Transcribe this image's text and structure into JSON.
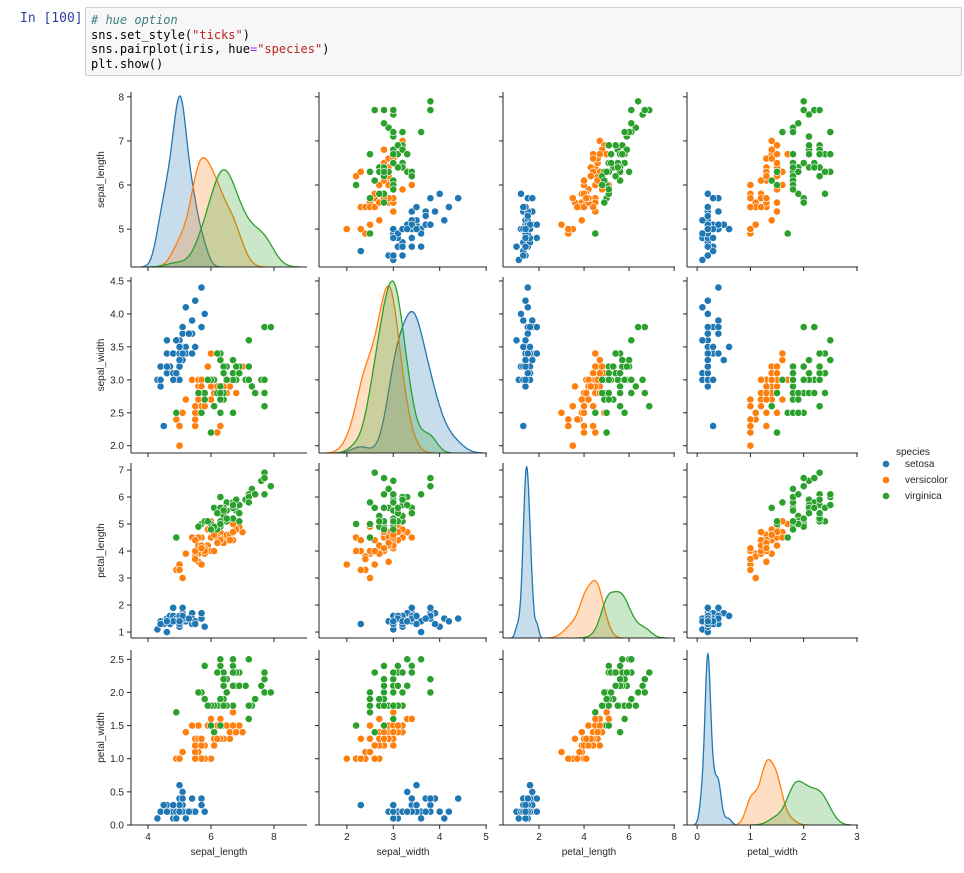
{
  "notebook": {
    "prompt": "In [100]:",
    "code_lines": [
      [
        {
          "t": "# hue option",
          "c": "cmt"
        }
      ],
      [
        {
          "t": "sns.set_style(",
          "c": ""
        },
        {
          "t": "\"ticks\"",
          "c": "str"
        },
        {
          "t": ")",
          "c": ""
        }
      ],
      [
        {
          "t": "sns.pairplot(iris, hue",
          "c": ""
        },
        {
          "t": "=",
          "c": "op"
        },
        {
          "t": "\"species\"",
          "c": "str"
        },
        {
          "t": ")",
          "c": ""
        }
      ],
      [
        {
          "t": "plt.show()",
          "c": ""
        }
      ]
    ]
  },
  "chart_data": {
    "type": "scatter",
    "subtype": "pairplot",
    "title": "",
    "variables": [
      "sepal_length",
      "sepal_width",
      "petal_length",
      "petal_width"
    ],
    "axis_ranges": {
      "sepal_length": [
        3.46,
        9.05
      ],
      "sepal_width": [
        1.4,
        5.02
      ],
      "petal_length": [
        0.4,
        8.04
      ],
      "petal_width": [
        -0.19,
        3.02
      ]
    },
    "row_ranges": {
      "sepal_length": [
        4.14,
        8.11
      ],
      "sepal_width": [
        1.89,
        4.56
      ],
      "petal_length": [
        0.78,
        7.26
      ],
      "petal_width": [
        0.0,
        2.64
      ]
    },
    "x_ticks": {
      "sepal_length": [
        "4",
        "6",
        "8"
      ],
      "sepal_width": [
        "2",
        "3",
        "4",
        "5"
      ],
      "petal_length": [
        "2",
        "4",
        "6",
        "8"
      ],
      "petal_width": [
        "0",
        "1",
        "2",
        "3"
      ]
    },
    "y_ticks": {
      "sepal_length": [
        "5",
        "6",
        "7",
        "8"
      ],
      "sepal_width": [
        "2.0",
        "2.5",
        "3.0",
        "3.5",
        "4.0",
        "4.5"
      ],
      "petal_length": [
        "1",
        "2",
        "3",
        "4",
        "5",
        "6",
        "7"
      ],
      "petal_width": [
        "0.0",
        "0.5",
        "1.0",
        "1.5",
        "2.0",
        "2.5"
      ]
    },
    "diagonal": "kde",
    "legend": {
      "title": "species",
      "position": "right",
      "entries": [
        {
          "label": "setosa",
          "color": "#1f77b4"
        },
        {
          "label": "versicolor",
          "color": "#ff7f0e"
        },
        {
          "label": "virginica",
          "color": "#2ca02c"
        }
      ]
    },
    "series": [
      {
        "name": "setosa",
        "color": "#1f77b4",
        "points": [
          [
            5.1,
            3.5,
            1.4,
            0.2
          ],
          [
            4.9,
            3.0,
            1.4,
            0.2
          ],
          [
            4.7,
            3.2,
            1.3,
            0.2
          ],
          [
            4.6,
            3.1,
            1.5,
            0.2
          ],
          [
            5.0,
            3.6,
            1.4,
            0.2
          ],
          [
            5.4,
            3.9,
            1.7,
            0.4
          ],
          [
            4.6,
            3.4,
            1.4,
            0.3
          ],
          [
            5.0,
            3.4,
            1.5,
            0.2
          ],
          [
            4.4,
            2.9,
            1.4,
            0.2
          ],
          [
            4.9,
            3.1,
            1.5,
            0.1
          ],
          [
            5.4,
            3.7,
            1.5,
            0.2
          ],
          [
            4.8,
            3.4,
            1.6,
            0.2
          ],
          [
            4.8,
            3.0,
            1.4,
            0.1
          ],
          [
            4.3,
            3.0,
            1.1,
            0.1
          ],
          [
            5.8,
            4.0,
            1.2,
            0.2
          ],
          [
            5.7,
            4.4,
            1.5,
            0.4
          ],
          [
            5.4,
            3.9,
            1.3,
            0.4
          ],
          [
            5.1,
            3.5,
            1.4,
            0.3
          ],
          [
            5.7,
            3.8,
            1.7,
            0.3
          ],
          [
            5.1,
            3.8,
            1.5,
            0.3
          ],
          [
            5.4,
            3.4,
            1.7,
            0.2
          ],
          [
            5.1,
            3.7,
            1.5,
            0.4
          ],
          [
            4.6,
            3.6,
            1.0,
            0.2
          ],
          [
            5.1,
            3.3,
            1.7,
            0.5
          ],
          [
            4.8,
            3.4,
            1.9,
            0.2
          ],
          [
            5.0,
            3.0,
            1.6,
            0.2
          ],
          [
            5.0,
            3.4,
            1.6,
            0.4
          ],
          [
            5.2,
            3.5,
            1.5,
            0.2
          ],
          [
            5.2,
            3.4,
            1.4,
            0.2
          ],
          [
            4.7,
            3.2,
            1.6,
            0.2
          ],
          [
            4.8,
            3.1,
            1.6,
            0.2
          ],
          [
            5.4,
            3.4,
            1.5,
            0.4
          ],
          [
            5.2,
            4.1,
            1.5,
            0.1
          ],
          [
            5.5,
            4.2,
            1.4,
            0.2
          ],
          [
            4.9,
            3.1,
            1.5,
            0.2
          ],
          [
            5.0,
            3.2,
            1.2,
            0.2
          ],
          [
            5.5,
            3.5,
            1.3,
            0.2
          ],
          [
            4.9,
            3.6,
            1.4,
            0.1
          ],
          [
            4.4,
            3.0,
            1.3,
            0.2
          ],
          [
            5.1,
            3.4,
            1.5,
            0.2
          ],
          [
            5.0,
            3.5,
            1.3,
            0.3
          ],
          [
            4.5,
            2.3,
            1.3,
            0.3
          ],
          [
            4.4,
            3.2,
            1.3,
            0.2
          ],
          [
            5.0,
            3.5,
            1.6,
            0.6
          ],
          [
            5.1,
            3.8,
            1.9,
            0.4
          ],
          [
            4.8,
            3.0,
            1.4,
            0.3
          ],
          [
            5.1,
            3.8,
            1.6,
            0.2
          ],
          [
            4.6,
            3.2,
            1.4,
            0.2
          ],
          [
            5.3,
            3.7,
            1.5,
            0.2
          ],
          [
            5.0,
            3.3,
            1.4,
            0.2
          ]
        ]
      },
      {
        "name": "versicolor",
        "color": "#ff7f0e",
        "points": [
          [
            7.0,
            3.2,
            4.7,
            1.4
          ],
          [
            6.4,
            3.2,
            4.5,
            1.5
          ],
          [
            6.9,
            3.1,
            4.9,
            1.5
          ],
          [
            5.5,
            2.3,
            4.0,
            1.3
          ],
          [
            6.5,
            2.8,
            4.6,
            1.5
          ],
          [
            5.7,
            2.8,
            4.5,
            1.3
          ],
          [
            6.3,
            3.3,
            4.7,
            1.6
          ],
          [
            4.9,
            2.4,
            3.3,
            1.0
          ],
          [
            6.6,
            2.9,
            4.6,
            1.3
          ],
          [
            5.2,
            2.7,
            3.9,
            1.4
          ],
          [
            5.0,
            2.0,
            3.5,
            1.0
          ],
          [
            5.9,
            3.0,
            4.2,
            1.5
          ],
          [
            6.0,
            2.2,
            4.0,
            1.0
          ],
          [
            6.1,
            2.9,
            4.7,
            1.4
          ],
          [
            5.6,
            2.9,
            3.6,
            1.3
          ],
          [
            6.7,
            3.1,
            4.4,
            1.4
          ],
          [
            5.6,
            3.0,
            4.5,
            1.5
          ],
          [
            5.8,
            2.7,
            4.1,
            1.0
          ],
          [
            6.2,
            2.2,
            4.5,
            1.5
          ],
          [
            5.6,
            2.5,
            3.9,
            1.1
          ],
          [
            5.9,
            3.2,
            4.8,
            1.8
          ],
          [
            6.1,
            2.8,
            4.0,
            1.3
          ],
          [
            6.3,
            2.5,
            4.9,
            1.5
          ],
          [
            6.1,
            2.8,
            4.7,
            1.2
          ],
          [
            6.4,
            2.9,
            4.3,
            1.3
          ],
          [
            6.6,
            3.0,
            4.4,
            1.4
          ],
          [
            6.8,
            2.8,
            4.8,
            1.4
          ],
          [
            6.7,
            3.0,
            5.0,
            1.7
          ],
          [
            6.0,
            2.9,
            4.5,
            1.5
          ],
          [
            5.7,
            2.6,
            3.5,
            1.0
          ],
          [
            5.5,
            2.4,
            3.8,
            1.1
          ],
          [
            5.5,
            2.4,
            3.7,
            1.0
          ],
          [
            5.8,
            2.7,
            3.9,
            1.2
          ],
          [
            6.0,
            2.7,
            5.1,
            1.6
          ],
          [
            5.4,
            3.0,
            4.5,
            1.5
          ],
          [
            6.0,
            3.4,
            4.5,
            1.6
          ],
          [
            6.7,
            3.1,
            4.7,
            1.5
          ],
          [
            6.3,
            2.3,
            4.4,
            1.3
          ],
          [
            5.6,
            3.0,
            4.1,
            1.3
          ],
          [
            5.5,
            2.5,
            4.0,
            1.3
          ],
          [
            5.5,
            2.6,
            4.4,
            1.2
          ],
          [
            6.1,
            3.0,
            4.6,
            1.4
          ],
          [
            5.8,
            2.6,
            4.0,
            1.2
          ],
          [
            5.0,
            2.3,
            3.3,
            1.0
          ],
          [
            5.6,
            2.7,
            4.2,
            1.3
          ],
          [
            5.7,
            3.0,
            4.2,
            1.2
          ],
          [
            5.7,
            2.9,
            4.2,
            1.3
          ],
          [
            6.2,
            2.9,
            4.3,
            1.3
          ],
          [
            5.1,
            2.5,
            3.0,
            1.1
          ],
          [
            5.7,
            2.8,
            4.1,
            1.3
          ]
        ]
      },
      {
        "name": "virginica",
        "color": "#2ca02c",
        "points": [
          [
            6.3,
            3.3,
            6.0,
            2.5
          ],
          [
            5.8,
            2.7,
            5.1,
            1.9
          ],
          [
            7.1,
            3.0,
            5.9,
            2.1
          ],
          [
            6.3,
            2.9,
            5.6,
            1.8
          ],
          [
            6.5,
            3.0,
            5.8,
            2.2
          ],
          [
            7.6,
            3.0,
            6.6,
            2.1
          ],
          [
            4.9,
            2.5,
            4.5,
            1.7
          ],
          [
            7.3,
            2.9,
            6.3,
            1.8
          ],
          [
            6.7,
            2.5,
            5.8,
            1.8
          ],
          [
            7.2,
            3.6,
            6.1,
            2.5
          ],
          [
            6.5,
            3.2,
            5.1,
            2.0
          ],
          [
            6.4,
            2.7,
            5.3,
            1.9
          ],
          [
            6.8,
            3.0,
            5.5,
            2.1
          ],
          [
            5.7,
            2.5,
            5.0,
            2.0
          ],
          [
            5.8,
            2.8,
            5.1,
            2.4
          ],
          [
            6.4,
            3.2,
            5.3,
            2.3
          ],
          [
            6.5,
            3.0,
            5.5,
            1.8
          ],
          [
            7.7,
            3.8,
            6.7,
            2.2
          ],
          [
            7.7,
            2.6,
            6.9,
            2.3
          ],
          [
            6.0,
            2.2,
            5.0,
            1.5
          ],
          [
            6.9,
            3.2,
            5.7,
            2.3
          ],
          [
            5.6,
            2.8,
            4.9,
            2.0
          ],
          [
            7.7,
            2.8,
            6.7,
            2.0
          ],
          [
            6.3,
            2.7,
            4.9,
            1.8
          ],
          [
            6.7,
            3.3,
            5.7,
            2.1
          ],
          [
            7.2,
            3.2,
            6.0,
            1.8
          ],
          [
            6.2,
            2.8,
            4.8,
            1.8
          ],
          [
            6.1,
            3.0,
            4.9,
            1.8
          ],
          [
            6.4,
            2.8,
            5.6,
            2.1
          ],
          [
            7.2,
            3.0,
            5.8,
            1.6
          ],
          [
            7.4,
            2.8,
            6.1,
            1.9
          ],
          [
            7.9,
            3.8,
            6.4,
            2.0
          ],
          [
            6.4,
            2.8,
            5.6,
            2.2
          ],
          [
            6.3,
            2.8,
            5.1,
            1.5
          ],
          [
            6.1,
            2.6,
            5.6,
            1.4
          ],
          [
            7.7,
            3.0,
            6.1,
            2.3
          ],
          [
            6.3,
            3.4,
            5.6,
            2.4
          ],
          [
            6.4,
            3.1,
            5.5,
            1.8
          ],
          [
            6.0,
            3.0,
            4.8,
            1.8
          ],
          [
            6.9,
            3.1,
            5.4,
            2.1
          ],
          [
            6.7,
            3.1,
            5.6,
            2.4
          ],
          [
            6.9,
            3.1,
            5.1,
            2.3
          ],
          [
            5.8,
            2.7,
            5.1,
            1.9
          ],
          [
            6.8,
            3.2,
            5.9,
            2.3
          ],
          [
            6.7,
            3.3,
            5.7,
            2.5
          ],
          [
            6.7,
            3.0,
            5.2,
            2.3
          ],
          [
            6.3,
            2.5,
            5.0,
            1.9
          ],
          [
            6.5,
            3.0,
            5.2,
            2.0
          ],
          [
            6.2,
            3.4,
            5.4,
            2.3
          ],
          [
            5.9,
            3.0,
            5.1,
            1.8
          ]
        ]
      }
    ]
  }
}
